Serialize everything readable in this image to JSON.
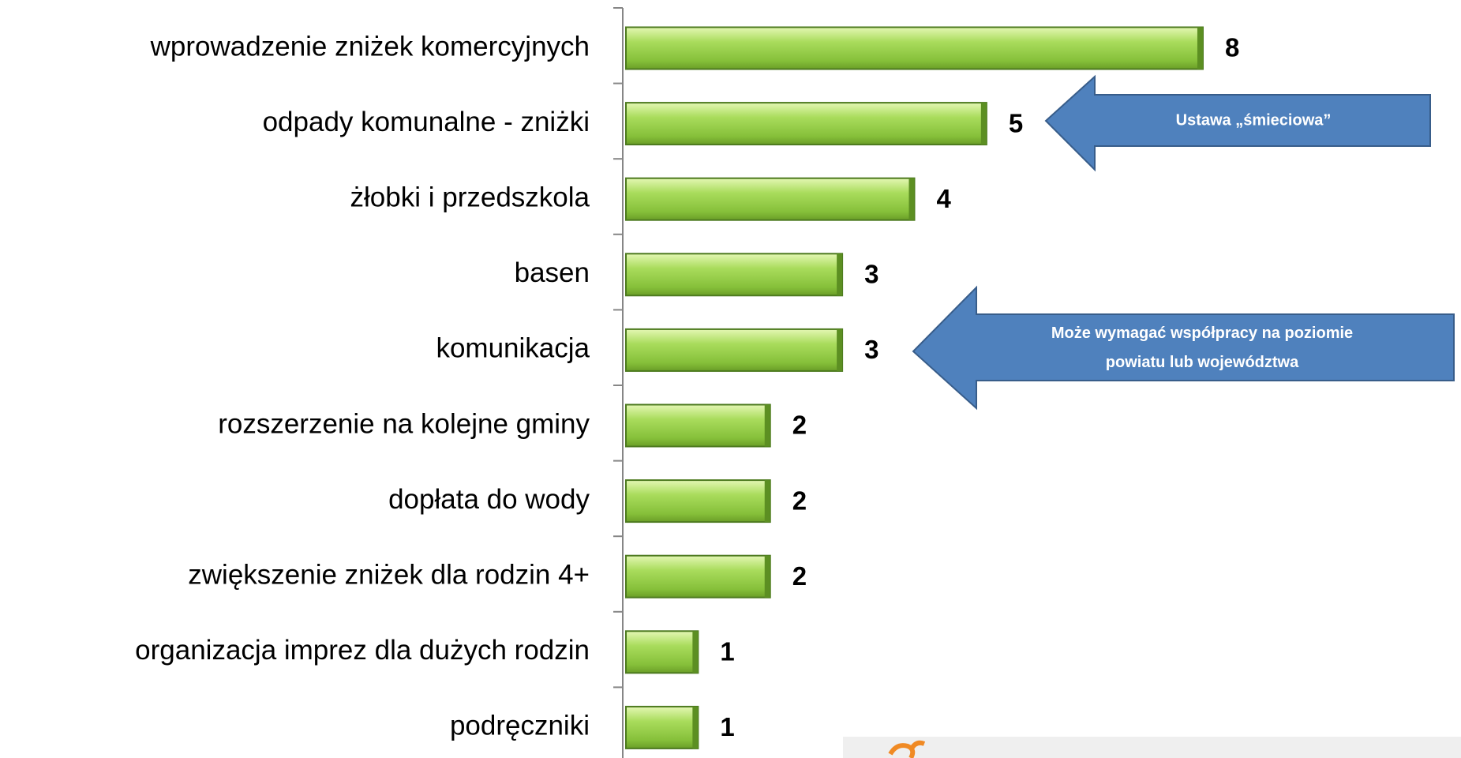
{
  "chart_data": {
    "type": "bar",
    "orientation": "horizontal",
    "categories": [
      "wprowadzenie zniżek komercyjnych",
      "odpady komunalne - zniżki",
      "żłobki i przedszkola",
      "basen",
      "komunikacja",
      "rozszerzenie na kolejne gminy",
      "dopłata do wody",
      "zwiększenie zniżek dla rodzin 4+",
      "organizacja imprez dla dużych rodzin",
      "podręczniki"
    ],
    "values": [
      8,
      5,
      4,
      3,
      3,
      2,
      2,
      2,
      1,
      1
    ],
    "color": "#92d050",
    "annotations": [
      [
        "Ustawa „śmieciowa”"
      ],
      [
        "Może wymagać współpracy na poziomie",
        "powiatu lub województwa"
      ]
    ]
  }
}
